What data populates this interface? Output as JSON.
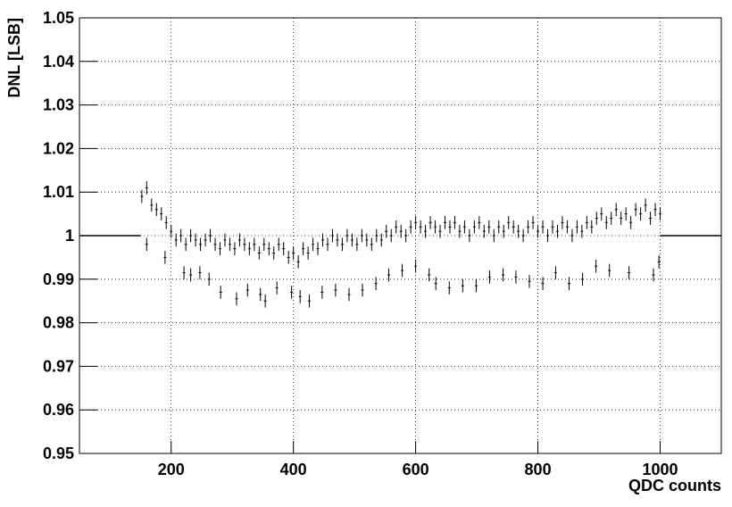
{
  "chart_data": {
    "type": "scatter",
    "xlabel": "QDC counts",
    "ylabel": "DNL [LSB]",
    "xlim": [
      50,
      1100
    ],
    "ylim": [
      0.95,
      1.05
    ],
    "xticks": [
      200,
      400,
      600,
      800,
      1000
    ],
    "yticks": [
      0.95,
      0.96,
      0.97,
      0.98,
      0.99,
      1,
      1.01,
      1.02,
      1.03,
      1.04,
      1.05
    ],
    "grid": true,
    "series": [
      {
        "color": "#000000",
        "draw": "errorbar",
        "yerr": 0.0015,
        "x": [
          152,
          160,
          168,
          176,
          184,
          192,
          200,
          208,
          216,
          224,
          232,
          240,
          248,
          256,
          264,
          272,
          280,
          288,
          296,
          304,
          312,
          320,
          328,
          336,
          344,
          352,
          360,
          368,
          376,
          384,
          392,
          400,
          408,
          416,
          424,
          432,
          440,
          448,
          456,
          464,
          472,
          480,
          488,
          496,
          504,
          512,
          520,
          528,
          536,
          544,
          552,
          560,
          568,
          576,
          584,
          592,
          600,
          608,
          616,
          624,
          632,
          640,
          648,
          656,
          664,
          672,
          680,
          688,
          696,
          704,
          712,
          720,
          728,
          736,
          744,
          752,
          760,
          768,
          776,
          784,
          792,
          800,
          808,
          816,
          824,
          832,
          840,
          848,
          856,
          864,
          872,
          880,
          888,
          896,
          904,
          912,
          920,
          928,
          936,
          944,
          952,
          960,
          968,
          976,
          984,
          992,
          1000
        ],
        "values": [
          1.009,
          1.011,
          1.007,
          1.006,
          1.005,
          1.003,
          1.001,
          0.999,
          1.0,
          0.998,
          1.0,
          0.999,
          0.998,
          0.999,
          1.0,
          0.998,
          0.997,
          0.999,
          0.998,
          0.997,
          0.999,
          0.998,
          0.997,
          0.998,
          0.996,
          0.998,
          0.997,
          0.996,
          0.998,
          0.997,
          0.995,
          0.996,
          0.994,
          0.997,
          0.996,
          0.998,
          0.997,
          0.999,
          0.998,
          1.0,
          0.999,
          0.998,
          1.0,
          0.999,
          0.998,
          1.0,
          0.999,
          0.998,
          1.0,
          0.999,
          1.001,
          1.0,
          1.002,
          1.001,
          1.0,
          1.002,
          1.003,
          1.002,
          1.001,
          1.003,
          1.002,
          1.001,
          1.003,
          1.002,
          1.003,
          1.001,
          1.002,
          1.0,
          1.002,
          1.003,
          1.001,
          1.002,
          1.0,
          1.002,
          1.001,
          1.003,
          1.002,
          1.001,
          1.0,
          1.002,
          1.003,
          1.001,
          1.002,
          1.0,
          1.002,
          1.001,
          1.003,
          1.002,
          1.0,
          1.002,
          1.001,
          1.003,
          1.002,
          1.004,
          1.005,
          1.003,
          1.004,
          1.006,
          1.004,
          1.005,
          1.003,
          1.006,
          1.005,
          1.007,
          1.004,
          1.006,
          1.005
        ]
      },
      {
        "color": "#000000",
        "draw": "errorbar",
        "yerr": 0.0015,
        "x": [
          160,
          190,
          221,
          232,
          247,
          262,
          281,
          307,
          325,
          346,
          354,
          373,
          397,
          411,
          426,
          447,
          469,
          491,
          513,
          535,
          556,
          578,
          600,
          622,
          633,
          655,
          677,
          699,
          721,
          743,
          764,
          786,
          808,
          829,
          851,
          873,
          895,
          917,
          949,
          989,
          998
        ],
        "values": [
          0.998,
          0.995,
          0.9915,
          0.991,
          0.9915,
          0.99,
          0.987,
          0.9855,
          0.9875,
          0.9865,
          0.985,
          0.988,
          0.987,
          0.986,
          0.985,
          0.987,
          0.9875,
          0.9865,
          0.9875,
          0.989,
          0.991,
          0.992,
          0.993,
          0.991,
          0.989,
          0.988,
          0.9885,
          0.9885,
          0.9905,
          0.991,
          0.9905,
          0.9895,
          0.989,
          0.9915,
          0.989,
          0.99,
          0.993,
          0.992,
          0.9915,
          0.991,
          0.994
        ]
      },
      {
        "color": "#000000",
        "draw": "line",
        "x": [
          50,
          150
        ],
        "values": [
          1,
          1
        ]
      },
      {
        "color": "#000000",
        "draw": "line",
        "x": [
          1000,
          1100
        ],
        "values": [
          1,
          1
        ]
      }
    ]
  }
}
